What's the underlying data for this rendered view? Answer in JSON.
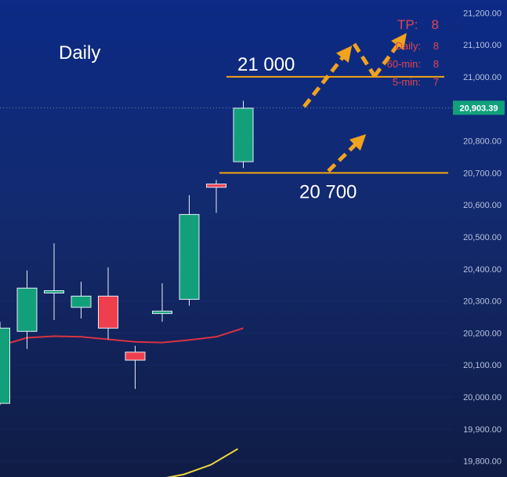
{
  "chart_data": {
    "type": "candlestick",
    "timeframe_label": "Daily",
    "ylim": [
      19750,
      21240
    ],
    "y_ticks": [
      "21,200.00",
      "21,100.00",
      "21,000.00",
      "20,900.00",
      "20,800.00",
      "20,700.00",
      "20,600.00",
      "20,500.00",
      "20,400.00",
      "20,300.00",
      "20,200.00",
      "20,100.00",
      "20,000.00",
      "19,900.00",
      "19,800.00"
    ],
    "y_tick_values": [
      21200,
      21100,
      21000,
      20900,
      20800,
      20700,
      20600,
      20500,
      20400,
      20300,
      20200,
      20100,
      20000,
      19900,
      19800
    ],
    "current_price": 20903.39,
    "current_price_label": "20,903.39",
    "candles": [
      {
        "open": 19980,
        "close": 20215,
        "high": 20235,
        "low": 19975
      },
      {
        "open": 20205,
        "close": 20340,
        "high": 20395,
        "low": 20150
      },
      {
        "open": 20325,
        "close": 20332,
        "high": 20480,
        "low": 20240
      },
      {
        "open": 20280,
        "close": 20315,
        "high": 20360,
        "low": 20245
      },
      {
        "open": 20315,
        "close": 20215,
        "high": 20405,
        "low": 20180
      },
      {
        "open": 20140,
        "close": 20115,
        "high": 20160,
        "low": 20025
      },
      {
        "open": 20262,
        "close": 20268,
        "high": 20355,
        "low": 20235
      },
      {
        "open": 20305,
        "close": 20570,
        "high": 20630,
        "low": 20285
      },
      {
        "open": 20665,
        "close": 20655,
        "high": 20678,
        "low": 20575
      },
      {
        "open": 20735,
        "close": 20902,
        "high": 20925,
        "low": 20715
      }
    ],
    "moving_average_red": [
      20160,
      20185,
      20190,
      20188,
      20180,
      20172,
      20170,
      20178,
      20188,
      20215
    ],
    "moving_average_yellow": [
      19742,
      19758,
      19788,
      19838
    ],
    "levels": [
      {
        "value": 21000,
        "label": "21 000"
      },
      {
        "value": 20700,
        "label": "20 700"
      }
    ],
    "tp_panel": {
      "title": "TP:",
      "title_value": "8",
      "rows": [
        {
          "label": "Daily:",
          "value": "8"
        },
        {
          "label": "60-min:",
          "value": "8"
        },
        {
          "label": "5-min:",
          "value": "7"
        }
      ]
    },
    "colors": {
      "up": "#12a07b",
      "down": "#ef3e4e",
      "level": "#f2a414",
      "arrow": "#f0a31d",
      "ma_red": "#d63442",
      "ma_yellow": "#ebd63a",
      "price_tag": "#12a07b",
      "tp_text": "#e0464f"
    }
  }
}
